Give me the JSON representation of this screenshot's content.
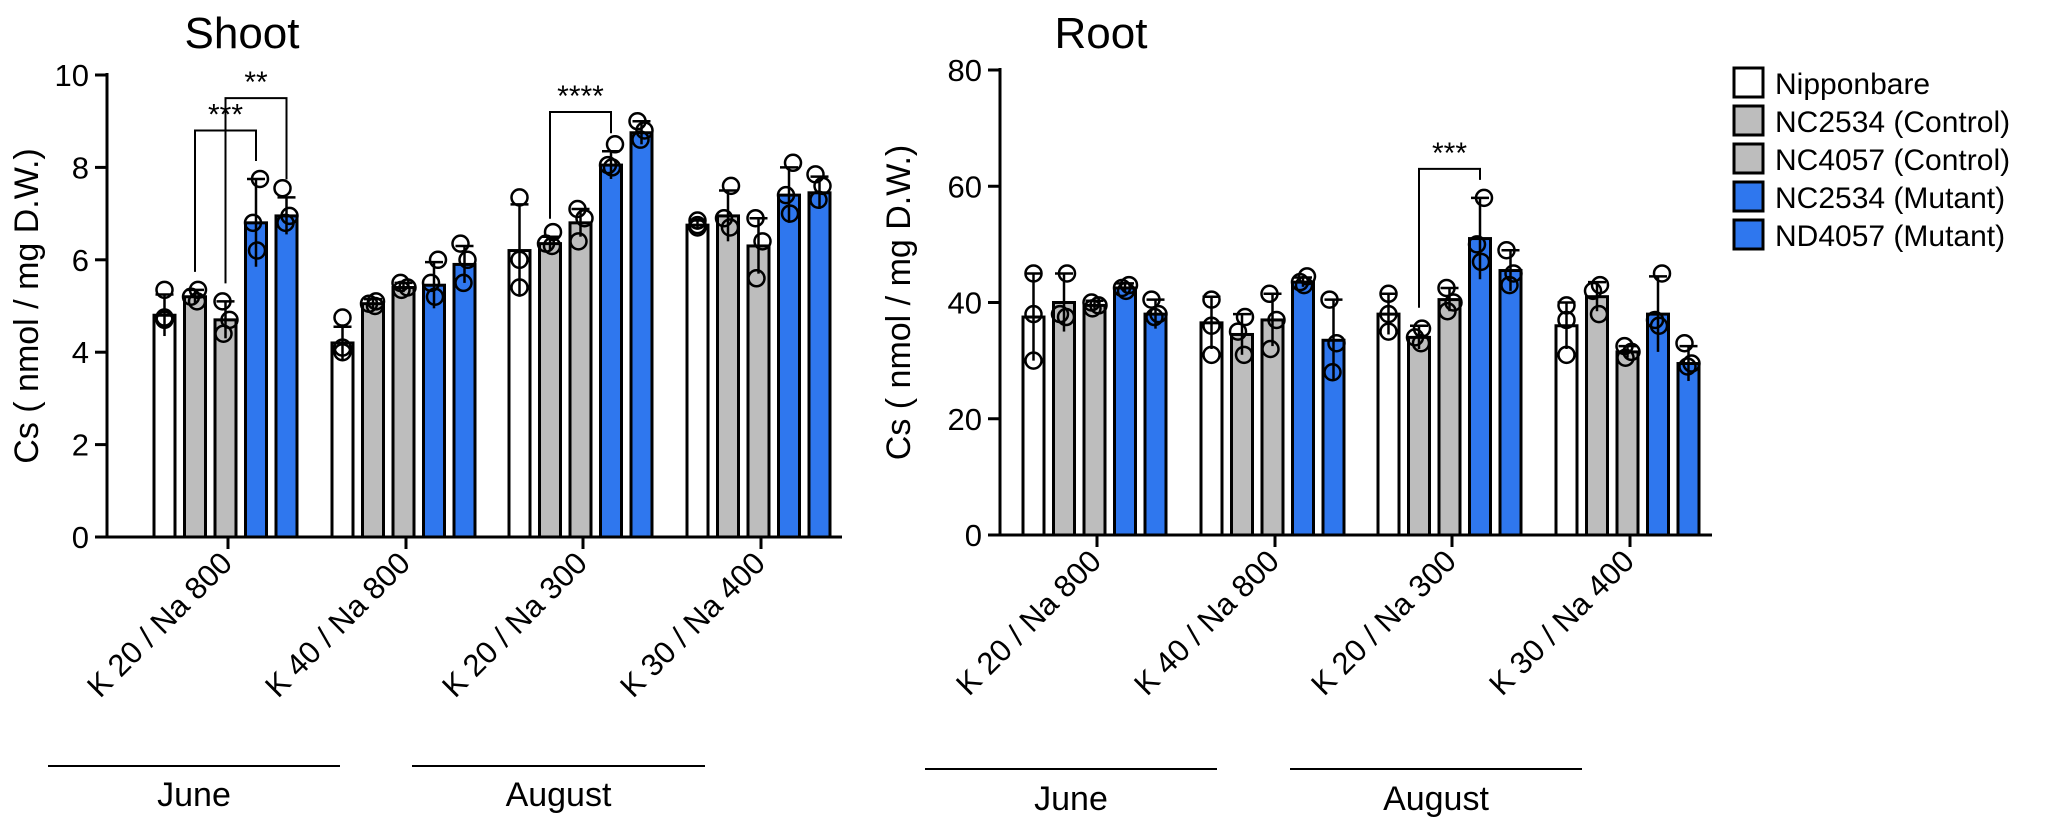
{
  "legend": [
    {
      "label": "Nipponbare",
      "color": "#ffffff"
    },
    {
      "label": "NC2534 (Control)",
      "color": "#bdbdbd"
    },
    {
      "label": "NC4057 (Control)",
      "color": "#bdbdbd"
    },
    {
      "label": "NC2534 (Mutant)",
      "color": "#2f77ee"
    },
    {
      "label": "ND4057 (Mutant)",
      "color": "#2f77ee"
    }
  ],
  "chart_data": [
    {
      "type": "bar",
      "title": "Shoot",
      "ylabel": "Cs ( nmol / mg D.W.)",
      "ylim": [
        0,
        10
      ],
      "yticks": [
        "0",
        "2",
        "4",
        "6",
        "8",
        "10"
      ],
      "categories": [
        "K 20 / Na 800",
        "K 40 / Na 800",
        "K 20 / Na 300",
        "K 30 / Na 400"
      ],
      "months": [
        "June",
        "August"
      ],
      "series": [
        {
          "name": "Nipponbare",
          "values": [
            4.8,
            4.2,
            6.2,
            6.75
          ],
          "errors": [
            0.45,
            0.35,
            1.0,
            0.1
          ],
          "points": [
            [
              5.35,
              4.75,
              4.7
            ],
            [
              4.75,
              4.1,
              4.0
            ],
            [
              7.35,
              6.0,
              5.4
            ],
            [
              6.85,
              6.75,
              6.7
            ]
          ]
        },
        {
          "name": "NC2534 (Control)",
          "values": [
            5.2,
            5.05,
            6.35,
            6.95
          ],
          "errors": [
            0.15,
            0.1,
            0.15,
            0.55
          ],
          "points": [
            [
              5.35,
              5.2,
              5.1
            ],
            [
              5.1,
              5.05,
              5.0
            ],
            [
              6.6,
              6.35,
              6.3
            ],
            [
              7.6,
              6.9,
              6.7
            ]
          ]
        },
        {
          "name": "NC4057 (Control)",
          "values": [
            4.7,
            5.4,
            6.8,
            6.3
          ],
          "errors": [
            0.4,
            0.1,
            0.3,
            0.6
          ],
          "points": [
            [
              5.1,
              4.7,
              4.4
            ],
            [
              5.5,
              5.4,
              5.35
            ],
            [
              7.1,
              6.9,
              6.4
            ],
            [
              6.9,
              6.4,
              5.6
            ]
          ]
        },
        {
          "name": "NC2534 (Mutant)",
          "values": [
            6.8,
            5.45,
            8.05,
            7.4
          ],
          "errors": [
            0.95,
            0.5,
            0.3,
            0.6
          ],
          "points": [
            [
              7.75,
              6.8,
              6.2
            ],
            [
              6.0,
              5.5,
              5.2
            ],
            [
              8.5,
              8.05,
              8.0
            ],
            [
              8.1,
              7.4,
              7.0
            ]
          ]
        },
        {
          "name": "ND4057 (Mutant)",
          "values": [
            6.95,
            5.9,
            8.75,
            7.45
          ],
          "errors": [
            0.4,
            0.4,
            0.25,
            0.35
          ],
          "points": [
            [
              7.55,
              6.95,
              6.8
            ],
            [
              6.35,
              6.0,
              5.5
            ],
            [
              9.0,
              8.8,
              8.6
            ],
            [
              7.85,
              7.6,
              7.3
            ]
          ]
        }
      ],
      "significance": [
        {
          "label": "***",
          "group": 0,
          "from": 1,
          "to": 3,
          "level": 8.8
        },
        {
          "label": "**",
          "group": 0,
          "from": 2,
          "to": 4,
          "level": 9.5
        },
        {
          "label": "****",
          "group": 2,
          "from": 1,
          "to": 3,
          "level": 9.2
        }
      ]
    },
    {
      "type": "bar",
      "title": "Root",
      "ylabel": "Cs ( nmol / mg D.W.)",
      "ylim": [
        0,
        80
      ],
      "yticks": [
        "0",
        "20",
        "40",
        "60",
        "80"
      ],
      "categories": [
        "K 20 / Na 800",
        "K 40 / Na 800",
        "K 20 / Na 300",
        "K 30 / Na 400"
      ],
      "months": [
        "June",
        "August"
      ],
      "series": [
        {
          "name": "Nipponbare",
          "values": [
            37.5,
            36.5,
            38.0,
            36.0
          ],
          "errors": [
            7.5,
            4.5,
            3.5,
            4.0
          ],
          "points": [
            [
              45.0,
              38.0,
              30.0
            ],
            [
              40.5,
              36.0,
              31.0
            ],
            [
              41.5,
              38.0,
              35.0
            ],
            [
              39.5,
              37.0,
              31.0
            ]
          ]
        },
        {
          "name": "NC2534 (Control)",
          "values": [
            40.0,
            34.5,
            34.0,
            41.0
          ],
          "errors": [
            5.0,
            3.5,
            2.0,
            2.5
          ],
          "points": [
            [
              45.0,
              38.0,
              37.5
            ],
            [
              37.5,
              35.0,
              31.0
            ],
            [
              35.5,
              34.0,
              33.0
            ],
            [
              43.0,
              42.0,
              38.0
            ]
          ]
        },
        {
          "name": "NC4057 (Control)",
          "values": [
            39.5,
            37.0,
            40.5,
            31.5
          ],
          "errors": [
            0.8,
            4.5,
            2.0,
            1.0
          ],
          "points": [
            [
              40.0,
              39.5,
              39.0
            ],
            [
              41.5,
              37.0,
              32.0
            ],
            [
              42.5,
              40.0,
              38.5
            ],
            [
              32.5,
              31.5,
              30.5
            ]
          ]
        },
        {
          "name": "NC2534 (Mutant)",
          "values": [
            42.5,
            43.5,
            51.0,
            38.0
          ],
          "errors": [
            0.8,
            0.8,
            7.0,
            6.5
          ],
          "points": [
            [
              43.0,
              42.5,
              42.0
            ],
            [
              44.5,
              43.5,
              43.0
            ],
            [
              58.0,
              50.0,
              47.0
            ],
            [
              45.0,
              37.0,
              36.0
            ]
          ]
        },
        {
          "name": "ND4057 (Mutant)",
          "values": [
            38.0,
            33.5,
            45.5,
            29.5
          ],
          "errors": [
            2.5,
            7.0,
            3.5,
            3.0
          ],
          "points": [
            [
              40.5,
              38.0,
              37.5
            ],
            [
              40.5,
              33.0,
              28.0
            ],
            [
              49.0,
              45.0,
              43.0
            ],
            [
              33.0,
              29.5,
              29.0
            ]
          ]
        }
      ],
      "significance": [
        {
          "label": "***",
          "group": 2,
          "from": 1,
          "to": 3,
          "level": 63.0
        }
      ]
    }
  ]
}
